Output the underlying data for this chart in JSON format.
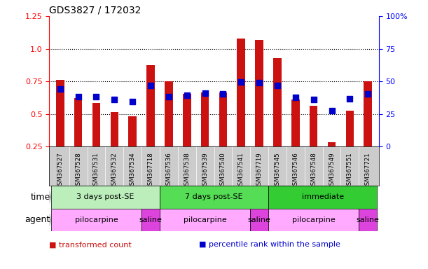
{
  "title": "GDS3827 / 172032",
  "samples": [
    "GSM367527",
    "GSM367528",
    "GSM367531",
    "GSM367532",
    "GSM367534",
    "GSM367718",
    "GSM367536",
    "GSM367538",
    "GSM367539",
    "GSM367540",
    "GSM367541",
    "GSM367719",
    "GSM367545",
    "GSM367546",
    "GSM367548",
    "GSM367549",
    "GSM367551",
    "GSM367721"
  ],
  "transformed_count": [
    0.76,
    0.62,
    0.585,
    0.515,
    0.48,
    0.875,
    0.75,
    0.655,
    0.665,
    0.665,
    1.08,
    1.07,
    0.93,
    0.61,
    0.565,
    0.285,
    0.525,
    0.75
  ],
  "percentile_rank": [
    0.69,
    0.635,
    0.635,
    0.61,
    0.595,
    0.72,
    0.635,
    0.645,
    0.66,
    0.655,
    0.745,
    0.74,
    0.72,
    0.625,
    0.61,
    0.525,
    0.615,
    0.655
  ],
  "bar_color": "#cc1111",
  "dot_color": "#0000cc",
  "ylim_left": [
    0.25,
    1.25
  ],
  "ylim_right": [
    0,
    100
  ],
  "yticks_left": [
    0.25,
    0.5,
    0.75,
    1.0,
    1.25
  ],
  "yticks_right": [
    0,
    25,
    50,
    75,
    100
  ],
  "ytick_labels_right": [
    "0",
    "25",
    "50",
    "75",
    "100%"
  ],
  "hlines": [
    0.5,
    0.75,
    1.0
  ],
  "time_groups": [
    {
      "label": "3 days post-SE",
      "start": 0,
      "end": 5,
      "color": "#bbeebb"
    },
    {
      "label": "7 days post-SE",
      "start": 6,
      "end": 11,
      "color": "#55dd55"
    },
    {
      "label": "immediate",
      "start": 12,
      "end": 17,
      "color": "#33cc33"
    }
  ],
  "agent_groups": [
    {
      "label": "pilocarpine",
      "start": 0,
      "end": 4,
      "color": "#ffaaff"
    },
    {
      "label": "saline",
      "start": 5,
      "end": 5,
      "color": "#dd44dd"
    },
    {
      "label": "pilocarpine",
      "start": 6,
      "end": 10,
      "color": "#ffaaff"
    },
    {
      "label": "saline",
      "start": 11,
      "end": 11,
      "color": "#dd44dd"
    },
    {
      "label": "pilocarpine",
      "start": 12,
      "end": 16,
      "color": "#ffaaff"
    },
    {
      "label": "saline",
      "start": 17,
      "end": 17,
      "color": "#dd44dd"
    }
  ],
  "legend_items": [
    {
      "label": "transformed count",
      "color": "#cc1111"
    },
    {
      "label": "percentile rank within the sample",
      "color": "#0000cc"
    }
  ],
  "background_color": "#ffffff",
  "xtick_bg": "#cccccc",
  "bar_width": 0.45,
  "dot_size": 28
}
